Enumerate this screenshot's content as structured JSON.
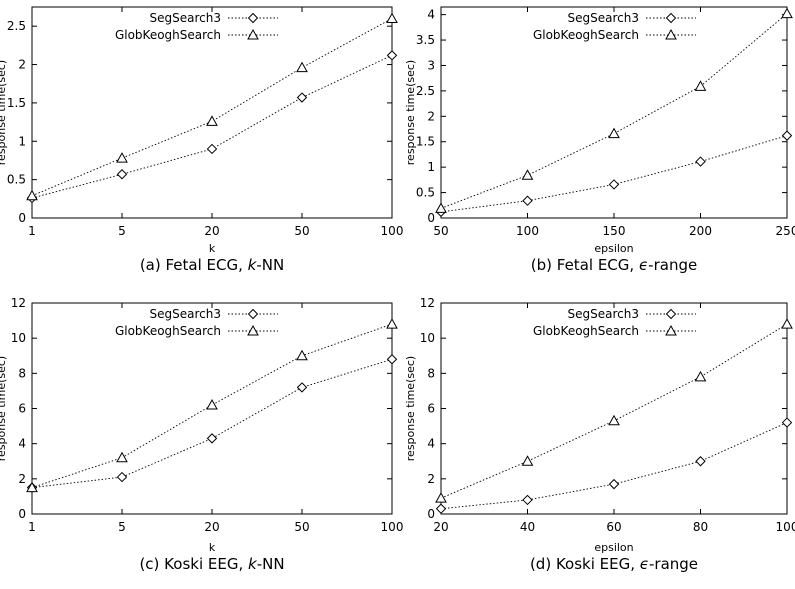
{
  "chart_data": [
    {
      "type": "line",
      "caption": "(a) Fetal ECG, k-NN",
      "caption_parts": [
        "(a) Fetal ECG, ",
        "k",
        "-NN"
      ],
      "xlabel": "k",
      "ylabel": "response time(sec)",
      "categories": [
        "1",
        "5",
        "20",
        "50",
        "100"
      ],
      "ylim": [
        0,
        2.75
      ],
      "yticks": [
        "0",
        "0.5",
        "1",
        "1.5",
        "2",
        "2.5"
      ],
      "ytick_values": [
        0,
        0.5,
        1,
        1.5,
        2,
        2.5
      ],
      "legend_position": "top-left",
      "grid": false,
      "series": [
        {
          "name": "SegSearch3",
          "marker": "diamond",
          "values": [
            0.26,
            0.57,
            0.9,
            1.57,
            2.12
          ]
        },
        {
          "name": "GlobKeoghSearch",
          "marker": "triangle",
          "values": [
            0.29,
            0.78,
            1.26,
            1.96,
            2.6
          ]
        }
      ]
    },
    {
      "type": "line",
      "caption": "(b) Fetal ECG, ϵ-range",
      "caption_parts": [
        "(b) Fetal ECG, ",
        "ϵ",
        "-range"
      ],
      "xlabel": "epsilon",
      "ylabel": "response time(sec)",
      "categories": [
        "50",
        "100",
        "150",
        "200",
        "250"
      ],
      "ylim": [
        0,
        4.15
      ],
      "yticks": [
        "0",
        "0.5",
        "1",
        "1.5",
        "2",
        "2.5",
        "3",
        "3.5",
        "4"
      ],
      "ytick_values": [
        0,
        0.5,
        1,
        1.5,
        2,
        2.5,
        3,
        3.5,
        4
      ],
      "legend_position": "top-right",
      "grid": false,
      "series": [
        {
          "name": "SegSearch3",
          "marker": "diamond",
          "values": [
            0.12,
            0.34,
            0.66,
            1.11,
            1.62
          ]
        },
        {
          "name": "GlobKeoghSearch",
          "marker": "triangle",
          "values": [
            0.19,
            0.84,
            1.66,
            2.59,
            4.02
          ]
        }
      ]
    },
    {
      "type": "line",
      "caption": "(c) Koski EEG, k-NN",
      "caption_parts": [
        "(c) Koski EEG, ",
        "k",
        "-NN"
      ],
      "xlabel": "k",
      "ylabel": "response time(sec)",
      "categories": [
        "1",
        "5",
        "20",
        "50",
        "100"
      ],
      "ylim": [
        0,
        12
      ],
      "yticks": [
        "0",
        "2",
        "4",
        "6",
        "8",
        "10",
        "12"
      ],
      "ytick_values": [
        0,
        2,
        4,
        6,
        8,
        10,
        12
      ],
      "legend_position": "top-left",
      "grid": false,
      "series": [
        {
          "name": "SegSearch3",
          "marker": "diamond",
          "values": [
            1.5,
            2.1,
            4.3,
            7.2,
            8.8
          ]
        },
        {
          "name": "GlobKeoghSearch",
          "marker": "triangle",
          "values": [
            1.5,
            3.2,
            6.2,
            9.0,
            10.8
          ]
        }
      ]
    },
    {
      "type": "line",
      "caption": "(d) Koski EEG, ϵ-range",
      "caption_parts": [
        "(d) Koski EEG, ",
        "ϵ",
        "-range"
      ],
      "xlabel": "epsilon",
      "ylabel": "response time(sec)",
      "categories": [
        "20",
        "40",
        "60",
        "80",
        "100"
      ],
      "ylim": [
        0,
        12
      ],
      "yticks": [
        "0",
        "2",
        "4",
        "6",
        "8",
        "10",
        "12"
      ],
      "ytick_values": [
        0,
        2,
        4,
        6,
        8,
        10,
        12
      ],
      "legend_position": "top-right",
      "grid": false,
      "series": [
        {
          "name": "SegSearch3",
          "marker": "diamond",
          "values": [
            0.3,
            0.8,
            1.7,
            3.0,
            5.2
          ]
        },
        {
          "name": "GlobKeoghSearch",
          "marker": "triangle",
          "values": [
            0.9,
            3.0,
            5.3,
            7.8,
            10.8
          ]
        }
      ]
    }
  ]
}
